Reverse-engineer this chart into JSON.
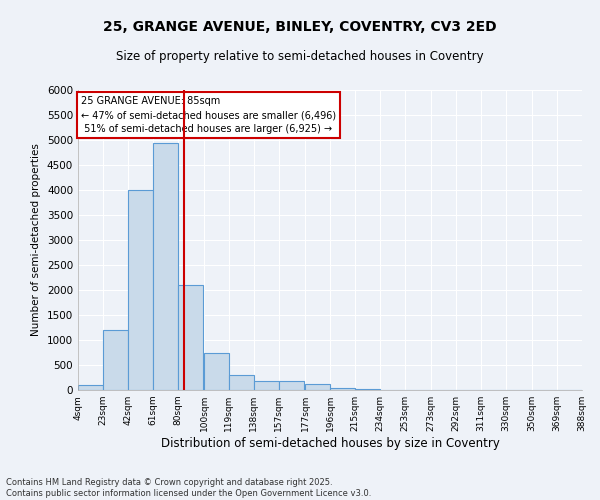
{
  "title_line1": "25, GRANGE AVENUE, BINLEY, COVENTRY, CV3 2ED",
  "title_line2": "Size of property relative to semi-detached houses in Coventry",
  "xlabel": "Distribution of semi-detached houses by size in Coventry",
  "ylabel": "Number of semi-detached properties",
  "property_size": 85,
  "property_label": "25 GRANGE AVENUE: 85sqm",
  "pct_smaller": 47,
  "pct_larger": 51,
  "count_smaller": 6496,
  "count_larger": 6925,
  "bar_left_edges": [
    4,
    23,
    42,
    61,
    80,
    100,
    119,
    138,
    157,
    177,
    196,
    215,
    234,
    253,
    273,
    292,
    311,
    330,
    350,
    369
  ],
  "bar_heights": [
    100,
    1200,
    4000,
    4950,
    2100,
    750,
    300,
    175,
    175,
    120,
    50,
    20,
    5,
    2,
    1,
    0,
    0,
    0,
    0,
    0
  ],
  "bin_width": 19,
  "tick_labels": [
    "4sqm",
    "23sqm",
    "42sqm",
    "61sqm",
    "80sqm",
    "100sqm",
    "119sqm",
    "138sqm",
    "157sqm",
    "177sqm",
    "196sqm",
    "215sqm",
    "234sqm",
    "253sqm",
    "273sqm",
    "292sqm",
    "311sqm",
    "330sqm",
    "350sqm",
    "369sqm",
    "388sqm"
  ],
  "tick_positions": [
    4,
    23,
    42,
    61,
    80,
    100,
    119,
    138,
    157,
    177,
    196,
    215,
    234,
    253,
    273,
    292,
    311,
    330,
    350,
    369,
    388
  ],
  "ylim": [
    0,
    6000
  ],
  "yticks": [
    0,
    500,
    1000,
    1500,
    2000,
    2500,
    3000,
    3500,
    4000,
    4500,
    5000,
    5500,
    6000
  ],
  "bar_color": "#c9daea",
  "bar_edge_color": "#5b9bd5",
  "redline_color": "#cc0000",
  "annotation_box_color": "#cc0000",
  "background_color": "#eef2f8",
  "grid_color": "#ffffff",
  "footer": "Contains HM Land Registry data © Crown copyright and database right 2025.\nContains public sector information licensed under the Open Government Licence v3.0."
}
